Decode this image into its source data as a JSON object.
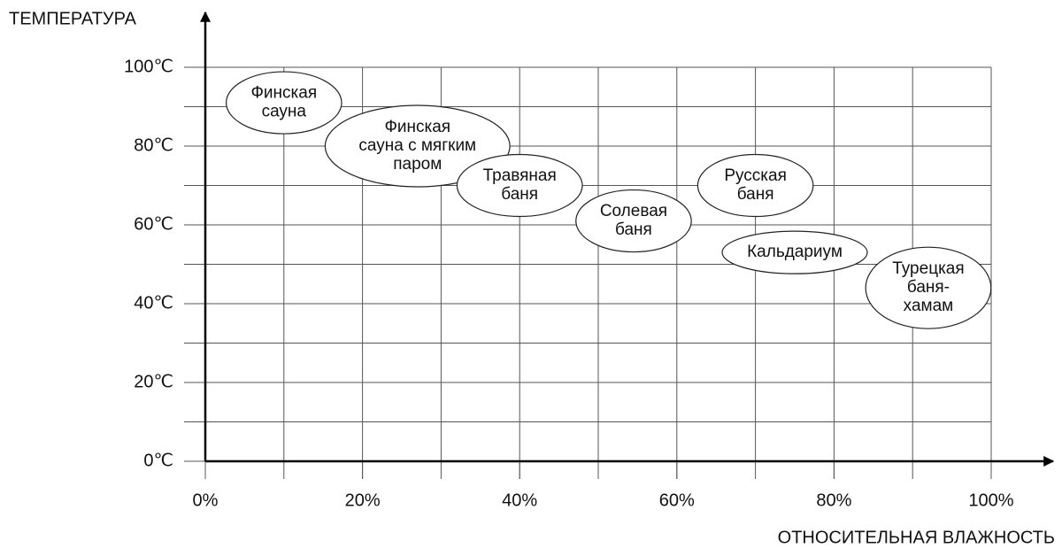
{
  "chart_data": {
    "type": "scatter",
    "y_label": "ТЕМПЕРАТУРА",
    "x_label": "ОТНОСИТЕЛЬНАЯ ВЛАЖНОСТЬ",
    "xlim": [
      0,
      100
    ],
    "ylim": [
      0,
      100
    ],
    "xticks": [
      {
        "value": 0,
        "label": "0%"
      },
      {
        "value": 20,
        "label": "20%"
      },
      {
        "value": 40,
        "label": "40%"
      },
      {
        "value": 60,
        "label": "60%"
      },
      {
        "value": 80,
        "label": "80%"
      },
      {
        "value": 100,
        "label": "100%"
      }
    ],
    "yticks": [
      {
        "value": 0,
        "label": "0℃"
      },
      {
        "value": 20,
        "label": "20℃"
      },
      {
        "value": 40,
        "label": "40℃"
      },
      {
        "value": 60,
        "label": "60℃"
      },
      {
        "value": 80,
        "label": "80℃"
      },
      {
        "value": 100,
        "label": "100℃"
      }
    ],
    "grid_step": 10,
    "grid": true,
    "points": [
      {
        "label": [
          "Финская",
          "сауна"
        ],
        "x": 10,
        "y": 91
      },
      {
        "label": [
          "Финская",
          "сауна с мягким",
          "паром"
        ],
        "x": 27,
        "y": 80
      },
      {
        "label": [
          "Травяная",
          "баня"
        ],
        "x": 40,
        "y": 70
      },
      {
        "label": [
          "Солевая",
          "баня"
        ],
        "x": 54.5,
        "y": 61
      },
      {
        "label": [
          "Русская",
          "баня"
        ],
        "x": 70,
        "y": 70
      },
      {
        "label": [
          "Кальдариум"
        ],
        "x": 75,
        "y": 53
      },
      {
        "label": [
          "Турецкая",
          "баня-",
          "хамам"
        ],
        "x": 92,
        "y": 44
      }
    ]
  }
}
